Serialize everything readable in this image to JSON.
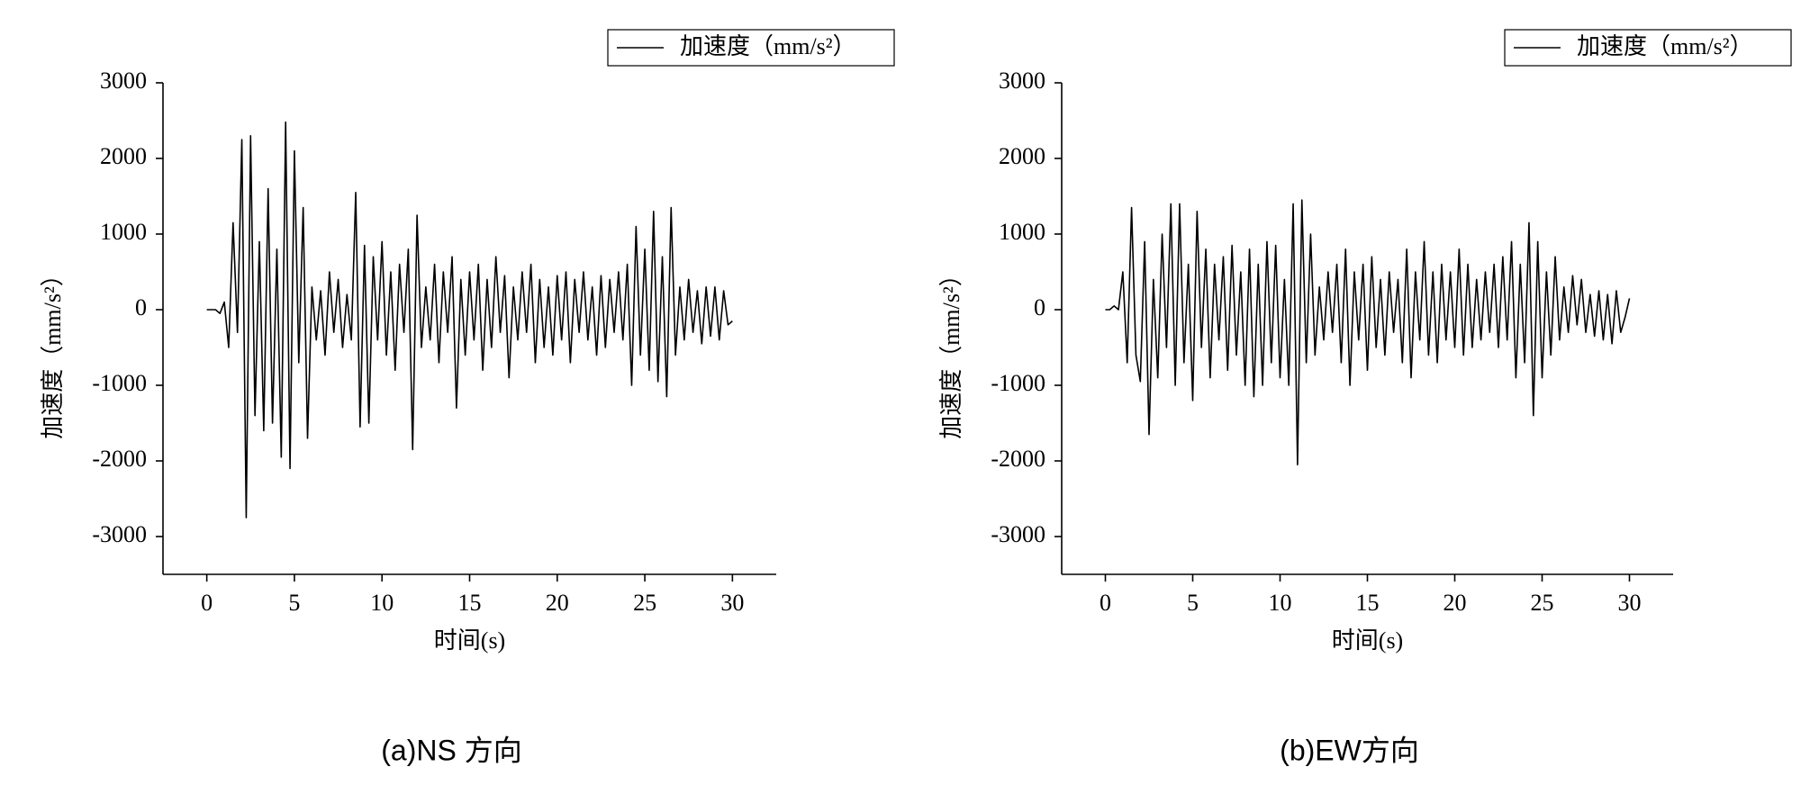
{
  "chart_data": [
    {
      "type": "line",
      "caption": "(a)NS 方向",
      "xlabel": "时间(s)",
      "ylabel": "加速度（mm/s²）",
      "legend": "upper right",
      "xlim": [
        -2.5,
        32.5
      ],
      "ylim": [
        -3500,
        3000
      ],
      "xticks": [
        0,
        5,
        10,
        15,
        20,
        25,
        30
      ],
      "yticks": [
        -3000,
        -2000,
        -1000,
        0,
        1000,
        2000,
        3000
      ],
      "x": [
        0,
        0.25,
        0.5,
        0.75,
        1,
        1.25,
        1.5,
        1.75,
        2,
        2.25,
        2.5,
        2.75,
        3,
        3.25,
        3.5,
        3.75,
        4,
        4.25,
        4.5,
        4.75,
        5,
        5.25,
        5.5,
        5.75,
        6,
        6.25,
        6.5,
        6.75,
        7,
        7.25,
        7.5,
        7.75,
        8,
        8.25,
        8.5,
        8.75,
        9,
        9.25,
        9.5,
        9.75,
        10,
        10.25,
        10.5,
        10.75,
        11,
        11.25,
        11.5,
        11.75,
        12,
        12.25,
        12.5,
        12.75,
        13,
        13.25,
        13.5,
        13.75,
        14,
        14.25,
        14.5,
        14.75,
        15,
        15.25,
        15.5,
        15.75,
        16,
        16.25,
        16.5,
        16.75,
        17,
        17.25,
        17.5,
        17.75,
        18,
        18.25,
        18.5,
        18.75,
        19,
        19.25,
        19.5,
        19.75,
        20,
        20.25,
        20.5,
        20.75,
        21,
        21.25,
        21.5,
        21.75,
        22,
        22.25,
        22.5,
        22.75,
        23,
        23.25,
        23.5,
        23.75,
        24,
        24.25,
        24.5,
        24.75,
        25,
        25.25,
        25.5,
        25.75,
        26,
        26.25,
        26.5,
        26.75,
        27,
        27.25,
        27.5,
        27.75,
        28,
        28.25,
        28.5,
        28.75,
        29,
        29.25,
        29.5,
        29.75,
        30
      ],
      "series": [
        {
          "name": "加速度（mm/s²）",
          "color": "#000000",
          "values": [
            0,
            0,
            0,
            -50,
            100,
            -500,
            1150,
            -300,
            2250,
            -2750,
            2300,
            -1400,
            900,
            -1600,
            1600,
            -1500,
            800,
            -1950,
            2480,
            -2100,
            2100,
            -700,
            1350,
            -1700,
            300,
            -400,
            250,
            -600,
            500,
            -300,
            400,
            -500,
            200,
            -400,
            1550,
            -1550,
            850,
            -1500,
            700,
            -400,
            900,
            -600,
            500,
            -800,
            600,
            -300,
            800,
            -1850,
            1250,
            -500,
            300,
            -400,
            600,
            -700,
            500,
            -300,
            700,
            -1300,
            400,
            -600,
            500,
            -400,
            600,
            -800,
            400,
            -500,
            700,
            -300,
            450,
            -900,
            300,
            -400,
            500,
            -300,
            600,
            -700,
            400,
            -500,
            300,
            -600,
            450,
            -400,
            500,
            -700,
            400,
            -300,
            500,
            -400,
            300,
            -600,
            450,
            -500,
            400,
            -300,
            500,
            -400,
            600,
            -1000,
            1100,
            -600,
            800,
            -800,
            1300,
            -950,
            700,
            -1150,
            1350,
            -600,
            300,
            -400,
            400,
            -300,
            250,
            -450,
            300,
            -350,
            300,
            -400,
            250,
            -200,
            -150
          ]
        }
      ]
    },
    {
      "type": "line",
      "caption": "(b)EW方向",
      "xlabel": "时间(s)",
      "ylabel": "加速度（mm/s²）",
      "legend": "upper right",
      "xlim": [
        -2.5,
        32.5
      ],
      "ylim": [
        -3500,
        3000
      ],
      "xticks": [
        0,
        5,
        10,
        15,
        20,
        25,
        30
      ],
      "yticks": [
        -3000,
        -2000,
        -1000,
        0,
        1000,
        2000,
        3000
      ],
      "x": [
        0,
        0.25,
        0.5,
        0.75,
        1,
        1.25,
        1.5,
        1.75,
        2,
        2.25,
        2.5,
        2.75,
        3,
        3.25,
        3.5,
        3.75,
        4,
        4.25,
        4.5,
        4.75,
        5,
        5.25,
        5.5,
        5.75,
        6,
        6.25,
        6.5,
        6.75,
        7,
        7.25,
        7.5,
        7.75,
        8,
        8.25,
        8.5,
        8.75,
        9,
        9.25,
        9.5,
        9.75,
        10,
        10.25,
        10.5,
        10.75,
        11,
        11.25,
        11.5,
        11.75,
        12,
        12.25,
        12.5,
        12.75,
        13,
        13.25,
        13.5,
        13.75,
        14,
        14.25,
        14.5,
        14.75,
        15,
        15.25,
        15.5,
        15.75,
        16,
        16.25,
        16.5,
        16.75,
        17,
        17.25,
        17.5,
        17.75,
        18,
        18.25,
        18.5,
        18.75,
        19,
        19.25,
        19.5,
        19.75,
        20,
        20.25,
        20.5,
        20.75,
        21,
        21.25,
        21.5,
        21.75,
        22,
        22.25,
        22.5,
        22.75,
        23,
        23.25,
        23.5,
        23.75,
        24,
        24.25,
        24.5,
        24.75,
        25,
        25.25,
        25.5,
        25.75,
        26,
        26.25,
        26.5,
        26.75,
        27,
        27.25,
        27.5,
        27.75,
        28,
        28.25,
        28.5,
        28.75,
        29,
        29.25,
        29.5,
        29.75,
        30
      ],
      "series": [
        {
          "name": "加速度（mm/s²）",
          "color": "#000000",
          "values": [
            0,
            0,
            50,
            0,
            500,
            -700,
            1350,
            -600,
            -950,
            900,
            -1650,
            400,
            -900,
            1000,
            -500,
            1400,
            -1000,
            1400,
            -700,
            600,
            -1200,
            1300,
            -500,
            800,
            -900,
            600,
            -400,
            700,
            -800,
            850,
            -600,
            500,
            -1000,
            800,
            -1150,
            600,
            -1000,
            900,
            -700,
            850,
            -900,
            400,
            -1000,
            1400,
            -2050,
            1450,
            -700,
            1000,
            -600,
            300,
            -400,
            500,
            -300,
            600,
            -700,
            800,
            -1000,
            500,
            -400,
            600,
            -800,
            700,
            -500,
            400,
            -600,
            500,
            -300,
            400,
            -700,
            800,
            -900,
            500,
            -400,
            900,
            -600,
            500,
            -700,
            600,
            -400,
            500,
            -500,
            800,
            -600,
            600,
            -500,
            400,
            -400,
            500,
            -300,
            600,
            -500,
            700,
            -400,
            900,
            -900,
            600,
            -700,
            1150,
            -1400,
            900,
            -900,
            500,
            -600,
            700,
            -400,
            300,
            -300,
            450,
            -200,
            400,
            -300,
            200,
            -350,
            250,
            -400,
            200,
            -450,
            250,
            -300,
            -100,
            150
          ]
        }
      ]
    }
  ]
}
